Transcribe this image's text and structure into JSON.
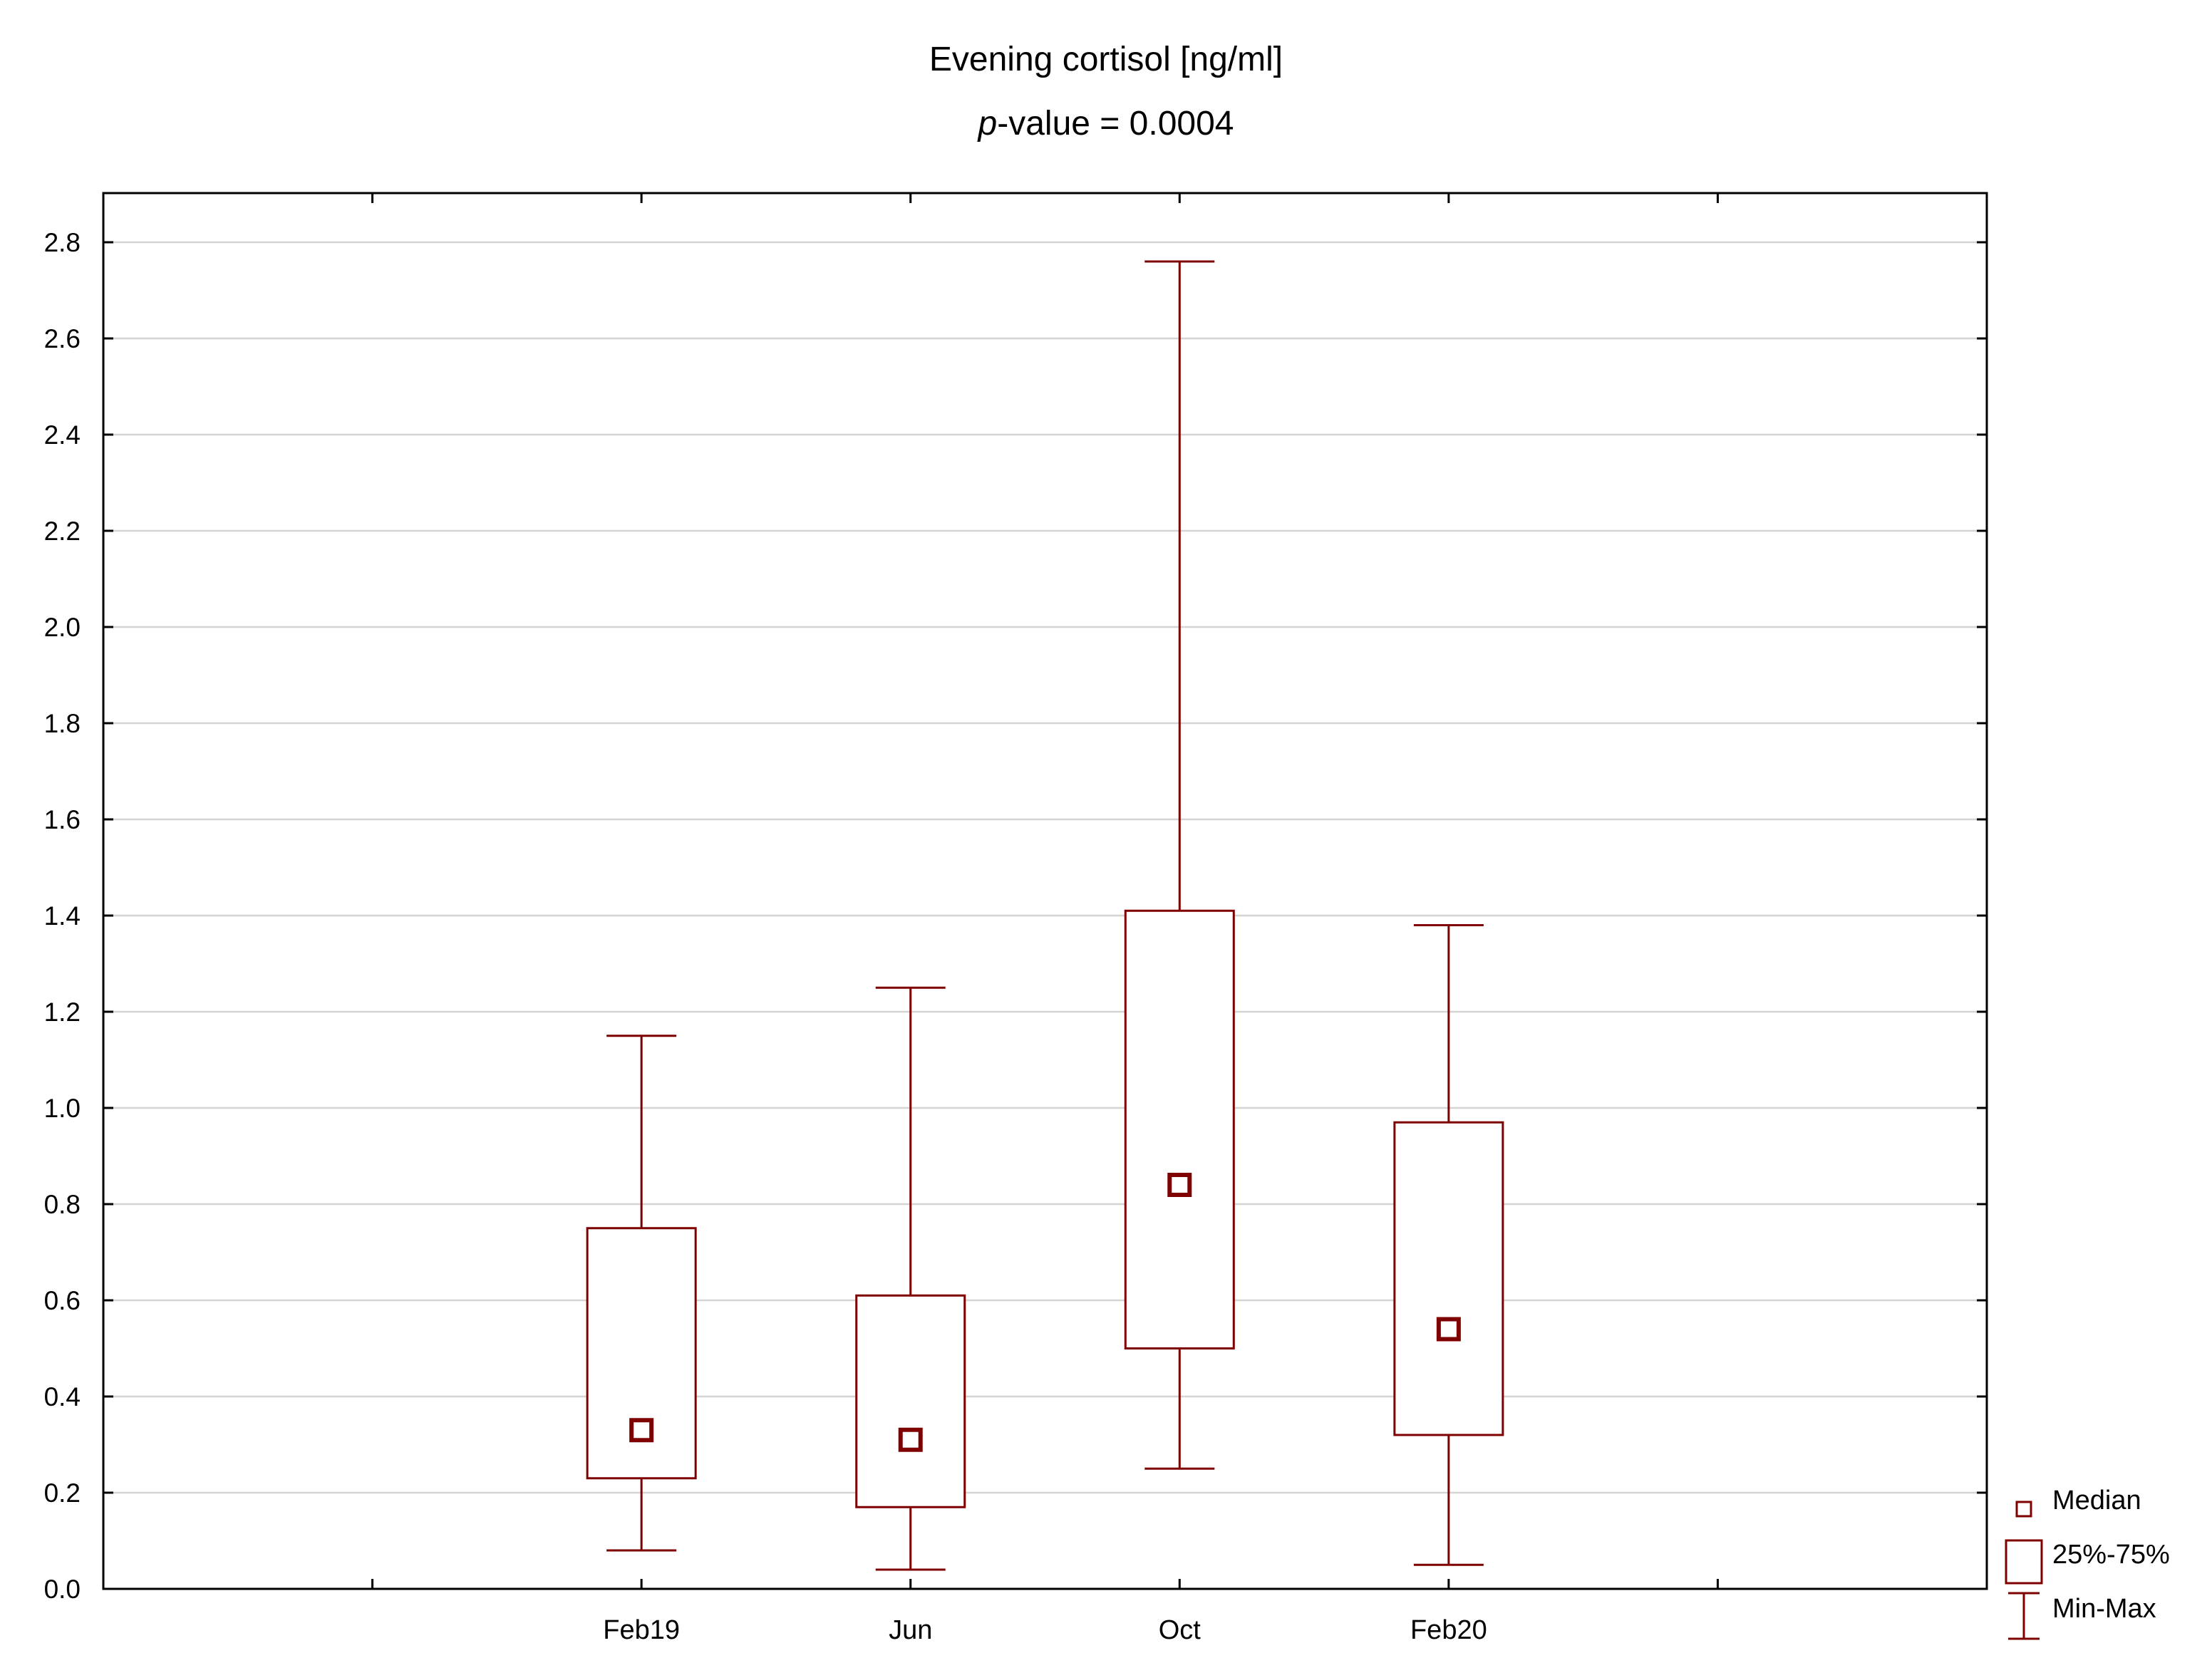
{
  "chart_data": {
    "type": "box",
    "title": "Evening cortisol [ng/ml]",
    "subtitle": {
      "p_label": "p",
      "rest": "-value = 0.0004"
    },
    "ylim": [
      0.0,
      2.8
    ],
    "yticks": [
      "0.0",
      "0.2",
      "0.4",
      "0.6",
      "0.8",
      "1.0",
      "1.2",
      "1.4",
      "1.6",
      "1.8",
      "2.0",
      "2.2",
      "2.4",
      "2.6",
      "2.8"
    ],
    "categories": [
      "Feb19",
      "Jun",
      "Oct",
      "Feb20"
    ],
    "x_slots": 7,
    "x_positions": [
      2,
      3,
      4,
      5
    ],
    "boxes": [
      {
        "label": "Feb19",
        "min": 0.08,
        "q1": 0.23,
        "median": 0.33,
        "q3": 0.75,
        "max": 1.15
      },
      {
        "label": "Jun",
        "min": 0.04,
        "q1": 0.17,
        "median": 0.31,
        "q3": 0.61,
        "max": 1.25
      },
      {
        "label": "Oct",
        "min": 0.25,
        "q1": 0.5,
        "median": 0.84,
        "q3": 1.41,
        "max": 2.76
      },
      {
        "label": "Feb20",
        "min": 0.05,
        "q1": 0.32,
        "median": 0.54,
        "q3": 0.97,
        "max": 1.38
      }
    ],
    "grid": true,
    "legend": {
      "placement": "bottom-right",
      "items": [
        {
          "kind": "median",
          "label": "Median"
        },
        {
          "kind": "box",
          "label": "25%-75%"
        },
        {
          "kind": "whisker",
          "label": "Min-Max"
        }
      ]
    },
    "colors": {
      "series": "#7f0000",
      "grid": "#d4d4d4",
      "axis": "#000000"
    }
  }
}
